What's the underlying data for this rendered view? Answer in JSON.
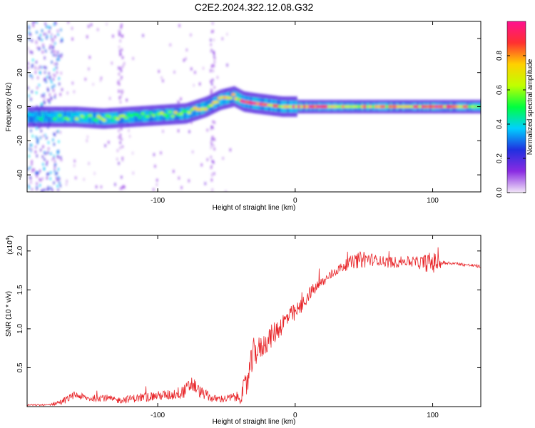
{
  "title": "C2E2.2024.322.12.08.G32",
  "chart_data": [
    {
      "type": "heatmap",
      "xlabel": "Height of straight line (km)",
      "ylabel": "Frequency (Hz)",
      "xlim": [
        -195,
        135
      ],
      "ylim": [
        -50,
        50
      ],
      "xticks": [
        -100,
        0,
        100
      ],
      "xtick_labels": [
        "-100",
        "0",
        "100"
      ],
      "yticks": [
        -40,
        -20,
        0,
        20,
        40
      ],
      "ytick_labels": [
        "-40",
        "-20",
        "0",
        "20",
        "40"
      ],
      "colorbar": {
        "label": "Normalized spectral amplitude",
        "range": [
          0,
          1
        ],
        "ticks": [
          0.0,
          0.2,
          0.4,
          0.6,
          0.8
        ],
        "tick_labels": [
          "0.0",
          "0.2",
          "0.4",
          "0.6",
          "0.8"
        ],
        "colors": [
          "#f2e6f8",
          "#8a2be2",
          "#2030e0",
          "#00d0ff",
          "#00ff40",
          "#c0ff00",
          "#ffd000",
          "#ff3030",
          "#ff1090"
        ]
      },
      "ridge": {
        "x": [
          -195,
          -180,
          -160,
          -140,
          -120,
          -100,
          -80,
          -65,
          -55,
          -45,
          -38,
          -30,
          -20,
          -10,
          0,
          10,
          20,
          40,
          60,
          80,
          100,
          135
        ],
        "freq": [
          -6,
          -6,
          -6,
          -7,
          -6,
          -5,
          -4,
          0,
          4,
          6,
          3,
          2,
          1,
          0,
          0,
          0,
          0,
          0,
          0,
          0,
          0,
          0
        ],
        "amp": [
          0.35,
          0.4,
          0.5,
          0.55,
          0.55,
          0.55,
          0.6,
          0.6,
          0.6,
          0.65,
          0.85,
          0.9,
          0.85,
          0.7,
          0.8,
          0.85,
          0.85,
          0.7,
          0.7,
          0.7,
          0.9,
          0.6
        ]
      }
    },
    {
      "type": "line",
      "xlabel": "Height of straight line (km)",
      "ylabel": "SNR (10 * v/v)",
      "y_multiplier": "(x10^4)",
      "xlim": [
        -195,
        135
      ],
      "ylim": [
        0,
        2.2
      ],
      "xticks": [
        -100,
        0,
        100
      ],
      "xtick_labels": [
        "-100",
        "0",
        "100"
      ],
      "yticks": [
        0.5,
        1.0,
        1.5,
        2.0
      ],
      "ytick_labels": [
        "0.5",
        "1.0",
        "1.5",
        "2.0"
      ],
      "series": [
        {
          "color": "#e8262a",
          "x": [
            -195,
            -180,
            -170,
            -160,
            -150,
            -140,
            -130,
            -120,
            -110,
            -100,
            -90,
            -80,
            -75,
            -70,
            -60,
            -50,
            -45,
            -40,
            -35,
            -30,
            -25,
            -20,
            -15,
            -10,
            -5,
            0,
            5,
            10,
            20,
            30,
            40,
            50,
            60,
            70,
            80,
            90,
            100,
            110,
            120,
            135
          ],
          "y": [
            0.02,
            0.02,
            0.06,
            0.15,
            0.1,
            0.12,
            0.08,
            0.1,
            0.12,
            0.14,
            0.15,
            0.2,
            0.3,
            0.2,
            0.1,
            0.1,
            0.12,
            0.12,
            0.3,
            0.7,
            0.75,
            0.85,
            0.95,
            1.05,
            1.15,
            1.2,
            1.3,
            1.45,
            1.6,
            1.75,
            1.85,
            1.9,
            1.88,
            1.85,
            1.87,
            1.85,
            1.85,
            1.85,
            1.83,
            1.8
          ],
          "noise": [
            0.01,
            0.01,
            0.04,
            0.05,
            0.04,
            0.05,
            0.04,
            0.05,
            0.06,
            0.06,
            0.07,
            0.09,
            0.12,
            0.08,
            0.05,
            0.05,
            0.06,
            0.08,
            0.2,
            0.2,
            0.15,
            0.15,
            0.15,
            0.14,
            0.13,
            0.12,
            0.1,
            0.09,
            0.07,
            0.06,
            0.08,
            0.12,
            0.06,
            0.08,
            0.06,
            0.08,
            0.15,
            0.02,
            0.02,
            0.02
          ]
        }
      ]
    }
  ]
}
